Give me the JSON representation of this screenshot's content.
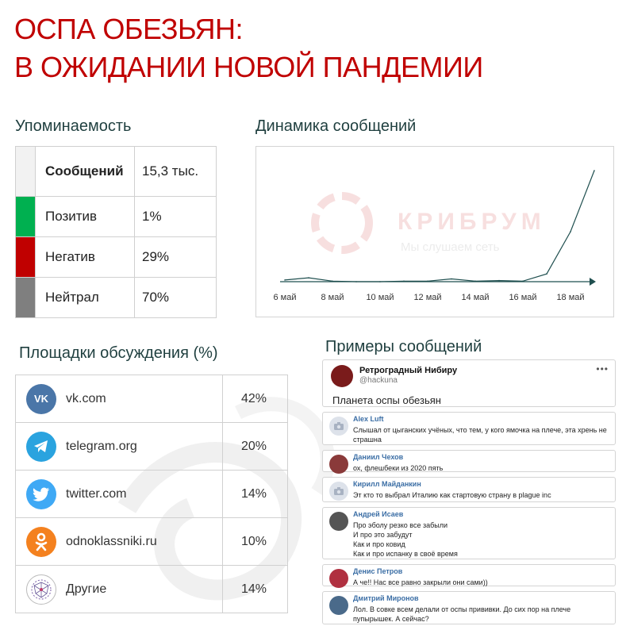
{
  "title": {
    "line1": "ОСПА ОБЕЗЬЯН:",
    "line2": "В ОЖИДАНИИ НОВОЙ ПАНДЕМИИ"
  },
  "mentions": {
    "heading": "Упоминаемость",
    "total_label": "Сообщений",
    "total_value": "15,3 тыс.",
    "rows": [
      {
        "label": "Позитив",
        "value": "1%",
        "color": "#00b050"
      },
      {
        "label": "Негатив",
        "value": "29%",
        "color": "#c00000"
      },
      {
        "label": "Нейтрал",
        "value": "70%",
        "color": "#7f7f7f"
      }
    ]
  },
  "dynamics": {
    "heading": "Динамика сообщений",
    "watermark_brand": "КРИБРУМ",
    "watermark_slogan": "Мы слушаем сеть",
    "colors": {
      "line": "#1f4f4f",
      "axis": "#1f4f4f"
    }
  },
  "chart_data": {
    "type": "line",
    "title": "",
    "xlabel": "",
    "ylabel": "",
    "x_tick_labels": [
      "6 май",
      "8 май",
      "10 май",
      "12 май",
      "14 май",
      "16 май",
      "18 май"
    ],
    "x": [
      6,
      7,
      8,
      9,
      10,
      11,
      12,
      13,
      14,
      15,
      16,
      17,
      18,
      19
    ],
    "values": [
      30,
      70,
      10,
      0,
      0,
      10,
      10,
      50,
      10,
      20,
      10,
      140,
      900,
      2000
    ],
    "ylim": [
      0,
      2000
    ],
    "grid": false,
    "legend": "none"
  },
  "platforms": {
    "heading": "Площадки обсуждения (%)",
    "rows": [
      {
        "name": "vk.com",
        "value": "42%",
        "icon": "vk-icon",
        "color": "#4a76a8",
        "glyph": "VK"
      },
      {
        "name": "telegram.org",
        "value": "20%",
        "icon": "telegram-icon",
        "color": "#2aa3df",
        "glyph": ""
      },
      {
        "name": "twitter.com",
        "value": "14%",
        "icon": "twitter-icon",
        "color": "#3fa9f5",
        "glyph": ""
      },
      {
        "name": "odnoklassniki.ru",
        "value": "10%",
        "icon": "odnoklassniki-icon",
        "color": "#f4811f",
        "glyph": ""
      },
      {
        "name": "Другие",
        "value": "14%",
        "icon": "network-icon",
        "color": "#ffffff",
        "glyph": ""
      }
    ]
  },
  "examples": {
    "heading": "Примеры сообщений",
    "post": {
      "author": "Ретроградный Нибиру",
      "handle": "@hackuna",
      "text": "Планета оспы обезьян",
      "more": "•••"
    },
    "comments": [
      {
        "author": "Alex Luft",
        "text": "Слышал от цыганских учёных, что тем, у кого ямочка на плече, эта хрень не\nстрашна",
        "avatar": "placeholder",
        "avatar_color": "#dde2ea"
      },
      {
        "author": "Даниил Чехов",
        "text": "ох, флешбеки из 2020 пять",
        "avatar": "photo",
        "avatar_color": "#8a3a3a"
      },
      {
        "author": "Кирилл Майданкин",
        "text": "Эт кто то выбрал Италию как стартовую страну в plague inc",
        "avatar": "placeholder",
        "avatar_color": "#dde2ea"
      },
      {
        "author": "Андрей Исаев",
        "text": "Про эболу резко все забыли\nИ про это забудут\nКак и про ковид\nКак и про испанку в своё время",
        "avatar": "photo",
        "avatar_color": "#555555"
      },
      {
        "author": "Денис Петров",
        "text": "А че!! Нас все равно закрыли они сами))",
        "avatar": "photo",
        "avatar_color": "#b03040"
      },
      {
        "author": "Дмитрий Миронов",
        "text": "Лол. В совке всем делали от оспы прививки. До сих пор на плече\nпупырышек. А сейчас?",
        "avatar": "photo",
        "avatar_color": "#4a6a8a"
      }
    ]
  }
}
